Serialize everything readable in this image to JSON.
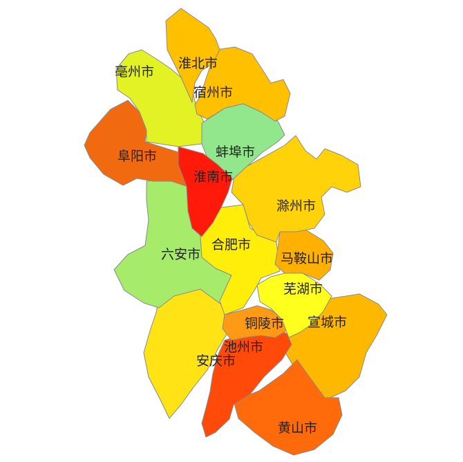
{
  "regions": [
    {
      "id": "huaibei",
      "name": "淮北市",
      "color": "#FFC000"
    },
    {
      "id": "bozhou",
      "name": "亳州市",
      "color": "#E2F224"
    },
    {
      "id": "suzhou",
      "name": "宿州市",
      "color": "#FFC000"
    },
    {
      "id": "bengbu",
      "name": "蚌埠市",
      "color": "#92E68C"
    },
    {
      "id": "fuyang",
      "name": "阜阳市",
      "color": "#F26A0F"
    },
    {
      "id": "huainan",
      "name": "淮南市",
      "color": "#FF1A0A"
    },
    {
      "id": "chuzhou",
      "name": "滁州市",
      "color": "#FFD20A"
    },
    {
      "id": "luan",
      "name": "六安市",
      "color": "#A6EB6A"
    },
    {
      "id": "hefei",
      "name": "合肥市",
      "color": "#FFEE0A"
    },
    {
      "id": "maanshan",
      "name": "马鞍山市",
      "color": "#FFB000"
    },
    {
      "id": "wuhu",
      "name": "芜湖市",
      "color": "#FFFF1E"
    },
    {
      "id": "xuancheng",
      "name": "宣城市",
      "color": "#FFB800"
    },
    {
      "id": "tongling",
      "name": "铜陵市",
      "color": "#FF9A14"
    },
    {
      "id": "chizhou",
      "name": "池州市",
      "color": "#FF4A0A"
    },
    {
      "id": "anqing",
      "name": "安庆市",
      "color": "#FFE314"
    },
    {
      "id": "huangshan",
      "name": "黄山市",
      "color": "#FF6A0A"
    }
  ]
}
